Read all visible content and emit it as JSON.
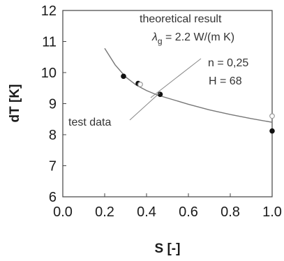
{
  "chart_data": {
    "type": "scatter",
    "xlabel": "S [-]",
    "ylabel": "dT [K]",
    "xlim": [
      0.0,
      1.0
    ],
    "ylim": [
      6,
      12
    ],
    "grid": false,
    "x_ticks": [
      "0.0",
      "0.2",
      "0.4",
      "0.6",
      "0.8",
      "1.0"
    ],
    "y_ticks": [
      "6",
      "7",
      "8",
      "9",
      "10",
      "11",
      "12"
    ],
    "series": [
      {
        "name": "theoretical result",
        "kind": "line",
        "x": [
          0.2,
          0.25,
          0.3,
          0.35,
          0.4,
          0.45,
          0.5,
          0.6,
          0.7,
          0.8,
          0.9,
          1.0
        ],
        "y": [
          10.78,
          10.25,
          9.86,
          9.6,
          9.42,
          9.28,
          9.18,
          8.98,
          8.8,
          8.65,
          8.52,
          8.4
        ],
        "color": "#777777"
      },
      {
        "name": "test data",
        "kind": "points",
        "x": [
          0.29,
          0.36,
          0.465,
          1.0
        ],
        "y": [
          9.88,
          9.65,
          9.3,
          8.12
        ],
        "color": "#111111"
      },
      {
        "name": "",
        "kind": "open-points",
        "x": [
          0.37,
          1.0
        ],
        "y": [
          9.62,
          8.6
        ],
        "color": "#9a9a9a"
      }
    ],
    "annotations": {
      "theory_label": "theoretical result",
      "lambda_label": "λ",
      "lambda_subscript": "g",
      "lambda_value": " = 2.2 W/(m K)",
      "n_label": "n = 0,25",
      "h_label": "H = 68",
      "test_label": "test data"
    }
  }
}
